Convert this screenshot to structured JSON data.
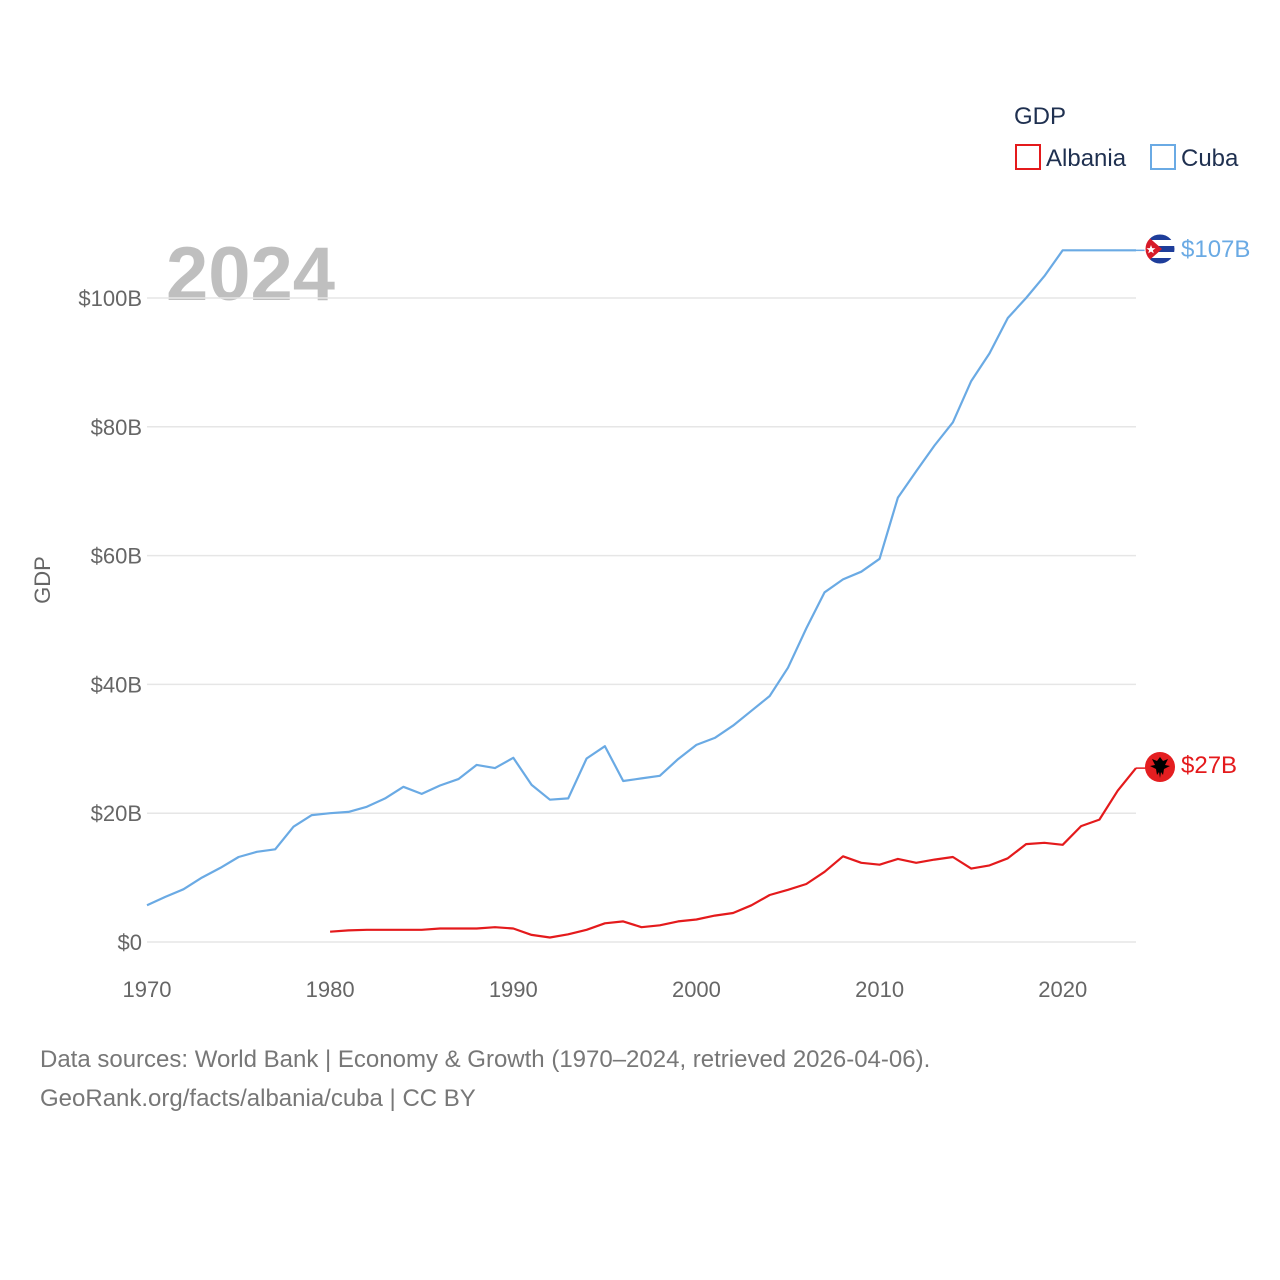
{
  "chart_data": {
    "type": "line",
    "ylabel": "GDP",
    "year_label": "2024",
    "legend": {
      "title": "GDP",
      "position": "top-right",
      "entries": [
        "Albania",
        "Cuba"
      ]
    },
    "xlim": [
      1970,
      2024
    ],
    "ylim": [
      0,
      110
    ],
    "x_ticks": [
      1970,
      1980,
      1990,
      2000,
      2010,
      2020
    ],
    "x_tick_labels": [
      "1970",
      "1980",
      "1990",
      "2000",
      "2010",
      "2020"
    ],
    "y_ticks": [
      0,
      20,
      40,
      60,
      80,
      100
    ],
    "y_tick_labels": [
      "$0",
      "$20B",
      "$40B",
      "$60B",
      "$80B",
      "$100B"
    ],
    "units": "billion USD",
    "series": [
      {
        "name": "Cuba",
        "color": "#6aaae4",
        "end_label": "$107B",
        "x": [
          1970,
          1971,
          1972,
          1973,
          1974,
          1975,
          1976,
          1977,
          1978,
          1979,
          1980,
          1981,
          1982,
          1983,
          1984,
          1985,
          1986,
          1987,
          1988,
          1989,
          1990,
          1991,
          1992,
          1993,
          1994,
          1995,
          1996,
          1997,
          1998,
          1999,
          2000,
          2001,
          2002,
          2003,
          2004,
          2005,
          2006,
          2007,
          2008,
          2009,
          2010,
          2011,
          2012,
          2013,
          2014,
          2015,
          2016,
          2017,
          2018,
          2019,
          2020,
          2021,
          2022,
          2023,
          2024
        ],
        "values": [
          5.7,
          7.0,
          8.2,
          10.0,
          11.5,
          13.2,
          14.0,
          14.4,
          17.9,
          19.7,
          20.0,
          20.2,
          21.0,
          22.3,
          24.1,
          23.0,
          24.3,
          25.3,
          27.5,
          27.0,
          28.6,
          24.4,
          22.1,
          22.3,
          28.5,
          30.4,
          25.0,
          25.4,
          25.8,
          28.4,
          30.6,
          31.7,
          33.6,
          35.9,
          38.2,
          42.6,
          48.7,
          54.3,
          56.3,
          57.5,
          59.5,
          69.0,
          73.1,
          77.1,
          80.7,
          87.1,
          91.4,
          96.9,
          100.0,
          103.4,
          107.4,
          107.4,
          107.4,
          107.4,
          107.4
        ]
      },
      {
        "name": "Albania",
        "color": "#e41a1c",
        "end_label": "$27B",
        "x": [
          1980,
          1981,
          1982,
          1983,
          1984,
          1985,
          1986,
          1987,
          1988,
          1989,
          1990,
          1991,
          1992,
          1993,
          1994,
          1995,
          1996,
          1997,
          1998,
          1999,
          2000,
          2001,
          2002,
          2003,
          2004,
          2005,
          2006,
          2007,
          2008,
          2009,
          2010,
          2011,
          2012,
          2013,
          2014,
          2015,
          2016,
          2017,
          2018,
          2019,
          2020,
          2021,
          2022,
          2023,
          2024
        ],
        "values": [
          1.6,
          1.8,
          1.9,
          1.9,
          1.9,
          1.9,
          2.1,
          2.1,
          2.1,
          2.3,
          2.1,
          1.1,
          0.7,
          1.2,
          1.9,
          2.9,
          3.2,
          2.3,
          2.6,
          3.2,
          3.5,
          4.1,
          4.5,
          5.7,
          7.3,
          8.1,
          9.0,
          10.9,
          13.3,
          12.3,
          12.0,
          12.9,
          12.3,
          12.8,
          13.2,
          11.4,
          11.9,
          13.0,
          15.2,
          15.4,
          15.1,
          18.0,
          19.0,
          23.5,
          27.0
        ]
      }
    ]
  },
  "source": {
    "line1": "Data sources: World Bank | Economy & Growth (1970–2024, retrieved 2026-04-06).",
    "line2": "GeoRank.org/facts/albania/cuba | CC BY"
  }
}
